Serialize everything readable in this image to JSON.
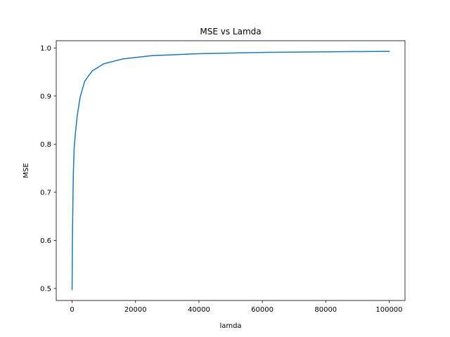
{
  "chart_data": {
    "type": "line",
    "title": "MSE vs Lamda",
    "xlabel": "lamda",
    "ylabel": "MSE",
    "xlim": [
      -5000,
      105000
    ],
    "ylim": [
      0.475,
      1.015
    ],
    "xticks": [
      0,
      20000,
      40000,
      60000,
      80000,
      100000
    ],
    "xtick_labels": [
      "0",
      "20000",
      "40000",
      "60000",
      "80000",
      "100000"
    ],
    "yticks": [
      0.5,
      0.6,
      0.7,
      0.8,
      0.9,
      1.0
    ],
    "ytick_labels": [
      "0.5",
      "0.6",
      "0.7",
      "0.8",
      "0.9",
      "1.0"
    ],
    "grid": false,
    "series": [
      {
        "color": "#1f77b4",
        "x": [
          0,
          100,
          250,
          400,
          630,
          1000,
          1580,
          2510,
          3980,
          6310,
          10000,
          15850,
          25120,
          39810,
          63100,
          100000
        ],
        "y": [
          0.498,
          0.6,
          0.68,
          0.74,
          0.79,
          0.82,
          0.857,
          0.897,
          0.931,
          0.952,
          0.967,
          0.977,
          0.984,
          0.988,
          0.991,
          0.993
        ]
      }
    ]
  }
}
